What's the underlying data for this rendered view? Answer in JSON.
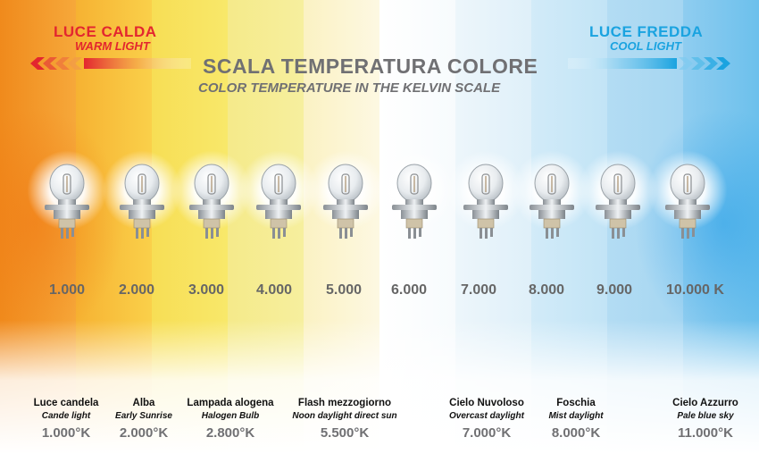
{
  "header": {
    "warm_title": "LUCE CALDA",
    "warm_subtitle": "WARM LIGHT",
    "cool_title": "LUCE FREDDA",
    "cool_subtitle": "COOL LIGHT",
    "main_title": "SCALA TEMPERATURA COLORE",
    "subtitle": "COLOR TEMPERATURE IN THE KELVIN SCALE"
  },
  "colors": {
    "warm_accent": "#e3262f",
    "cool_accent": "#1aa3e0",
    "title_gray": "#707073",
    "bands": [
      "#f59a2a",
      "#f9c43a",
      "#f7e05a",
      "#f6ec95",
      "#fbf4cc",
      "#ffffff",
      "#eef6fb",
      "#cfe9f7",
      "#b3dcf3",
      "#8fcdf0"
    ]
  },
  "scale": {
    "values": [
      "1.000",
      "2.000",
      "3.000",
      "4.000",
      "5.000",
      "6.000",
      "7.000",
      "8.000",
      "9.000",
      "10.000 K"
    ]
  },
  "bulbs": {
    "icon": "halogen-bulb-icon",
    "count": 10
  },
  "sources": [
    {
      "name": "Luce candela",
      "english": "Cande light",
      "kelvin": "1.000°K"
    },
    {
      "name": "Alba",
      "english": "Early Sunrise",
      "kelvin": "2.000°K"
    },
    {
      "name": "Lampada alogena",
      "english": "Halogen Bulb",
      "kelvin": "2.800°K"
    },
    {
      "name": "Flash mezzogiorno",
      "english": "Noon daylight  direct sun",
      "kelvin": "5.500°K"
    },
    {
      "name": "Cielo Nuvoloso",
      "english": "Overcast daylight",
      "kelvin": "7.000°K"
    },
    {
      "name": "Foschia",
      "english": "Mist daylight",
      "kelvin": "8.000°K"
    },
    {
      "name": "Cielo Azzurro",
      "english": "Pale blue sky",
      "kelvin": "11.000°K"
    }
  ]
}
